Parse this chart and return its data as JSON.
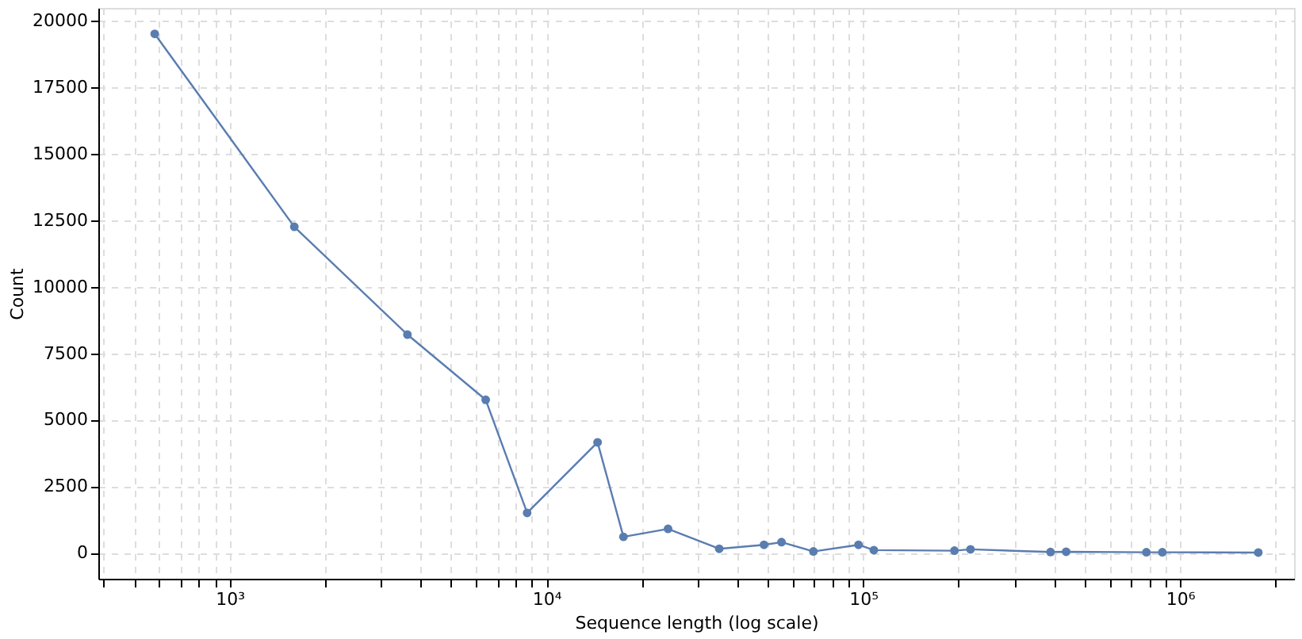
{
  "chart_data": {
    "type": "line",
    "xlabel": "Sequence length (log scale)",
    "ylabel": "Count",
    "log": "x",
    "grid": true,
    "marker": "circle",
    "line_style": "solid",
    "x": [
      580,
      1600,
      3640,
      6430,
      8690,
      14500,
      17500,
      24200,
      35100,
      48600,
      55200,
      69600,
      96600,
      108000,
      194000,
      218000,
      390000,
      437000,
      783000,
      879000,
      1766000
    ],
    "series": [
      {
        "color": "#5a7db0",
        "values": [
          19500,
          12250,
          8200,
          5750,
          1500,
          4150,
          600,
          900,
          150,
          300,
          400,
          50,
          300,
          100,
          80,
          130,
          30,
          40,
          20,
          20,
          10
        ]
      }
    ],
    "xlim": [
      385,
      2290000
    ],
    "xticks": [
      {
        "value": 400,
        "label": null
      },
      {
        "value": 500,
        "label": null
      },
      {
        "value": 600,
        "label": null
      },
      {
        "value": 700,
        "label": null
      },
      {
        "value": 800,
        "label": null
      },
      {
        "value": 900,
        "label": null
      },
      {
        "value": 1000,
        "label": "10³"
      },
      {
        "value": 2000,
        "label": null
      },
      {
        "value": 3000,
        "label": null
      },
      {
        "value": 4000,
        "label": null
      },
      {
        "value": 5000,
        "label": null
      },
      {
        "value": 6000,
        "label": null
      },
      {
        "value": 7000,
        "label": null
      },
      {
        "value": 8000,
        "label": null
      },
      {
        "value": 9000,
        "label": null
      },
      {
        "value": 10000,
        "label": "10⁴"
      },
      {
        "value": 20000,
        "label": null
      },
      {
        "value": 30000,
        "label": null
      },
      {
        "value": 40000,
        "label": null
      },
      {
        "value": 50000,
        "label": null
      },
      {
        "value": 60000,
        "label": null
      },
      {
        "value": 70000,
        "label": null
      },
      {
        "value": 80000,
        "label": null
      },
      {
        "value": 90000,
        "label": null
      },
      {
        "value": 100000,
        "label": "10⁵"
      },
      {
        "value": 200000,
        "label": null
      },
      {
        "value": 300000,
        "label": null
      },
      {
        "value": 400000,
        "label": null
      },
      {
        "value": 500000,
        "label": null
      },
      {
        "value": 600000,
        "label": null
      },
      {
        "value": 700000,
        "label": null
      },
      {
        "value": 800000,
        "label": null
      },
      {
        "value": 900000,
        "label": null
      },
      {
        "value": 1000000,
        "label": "10⁶"
      },
      {
        "value": 2000000,
        "label": null
      }
    ],
    "ylim": [
      -975,
      20475
    ],
    "yticks": [
      0,
      2500,
      5000,
      7500,
      10000,
      12500,
      15000,
      17500,
      20000
    ]
  }
}
